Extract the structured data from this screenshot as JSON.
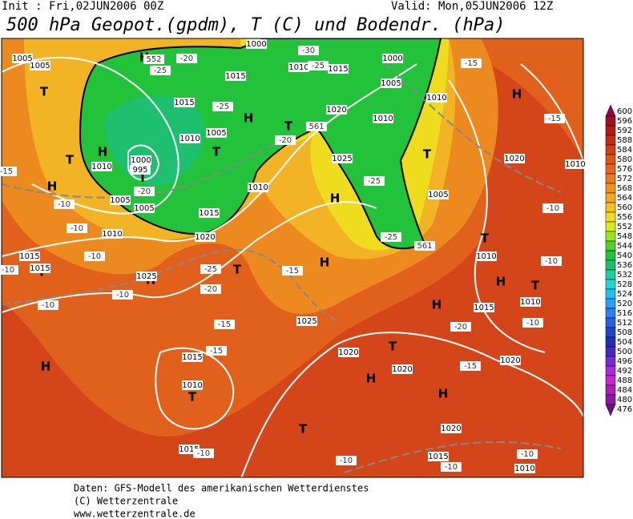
{
  "header": {
    "init": "Init : Fri,02JUN2006 00Z",
    "valid": "Valid: Mon,05JUN2006 12Z",
    "title": "500 hPa Geopot.(gpdm), T (C) und Bodendr. (hPa)"
  },
  "map": {
    "labels": [
      "H",
      "T",
      "T",
      "H",
      "H",
      "T",
      "T",
      "H",
      "T",
      "H",
      "H",
      "T",
      "H",
      "T",
      "H",
      "T",
      "T",
      "H",
      "T",
      "H",
      "H",
      "H",
      "T",
      "T",
      "T",
      "H",
      "1005",
      "1005",
      "1015",
      "1010",
      "1005",
      "1000",
      "995",
      "1010",
      "1005",
      "1005",
      "1015",
      "1020",
      "1010",
      "1025",
      "1020",
      "1010",
      "1005",
      "1000",
      "1015",
      "1010",
      "1015",
      "1000",
      "1010",
      "1005",
      "1020",
      "1010",
      "1010",
      "1015",
      "1010",
      "1025",
      "1020",
      "1020",
      "1020",
      "1015",
      "1010",
      "1020",
      "1015",
      "1015",
      "1010",
      "1015",
      "1015",
      "1010",
      "1025",
      "-20",
      "-25",
      "-25",
      "-20",
      "-20",
      "-25",
      "-25",
      "-25",
      "-20",
      "-15",
      "-15",
      "-15",
      "-10",
      "-10",
      "-10",
      "-10",
      "-15",
      "-10",
      "-10",
      "-10",
      "-15",
      "-15",
      "-10",
      "-10",
      "-15",
      "-20",
      "-10",
      "-10",
      "-10",
      "-10",
      "-30",
      "-25",
      "561",
      "561",
      "552"
    ]
  },
  "colorbar": {
    "levels": [
      600,
      596,
      592,
      588,
      584,
      580,
      576,
      572,
      568,
      564,
      560,
      556,
      552,
      548,
      544,
      540,
      536,
      532,
      528,
      524,
      520,
      516,
      512,
      508,
      504,
      500,
      496,
      492,
      488,
      484,
      480,
      476
    ],
    "colors": [
      "#8c0a46",
      "#a0101e",
      "#b41a14",
      "#c82a10",
      "#d63e10",
      "#e05418",
      "#e8661c",
      "#ee7a1e",
      "#f2901e",
      "#f5a820",
      "#f6c020",
      "#f2dc1c",
      "#d6ec1a",
      "#9ae41c",
      "#4cd22a",
      "#22c23a",
      "#1ec070",
      "#1ed0a0",
      "#20d8d0",
      "#20c0f0",
      "#2aa0f8",
      "#2a80f0",
      "#2860e0",
      "#2244c8",
      "#2030b0",
      "#4828c0",
      "#7a2ad0",
      "#a82ad8",
      "#c828d0",
      "#b01ab8",
      "#8a1aa0",
      "#6a1080"
    ]
  },
  "footer": [
    "Daten: GFS-Modell des amerikanischen Wetterdienstes",
    "(C) Wetterzentrale",
    "www.wetterzentrale.de"
  ]
}
